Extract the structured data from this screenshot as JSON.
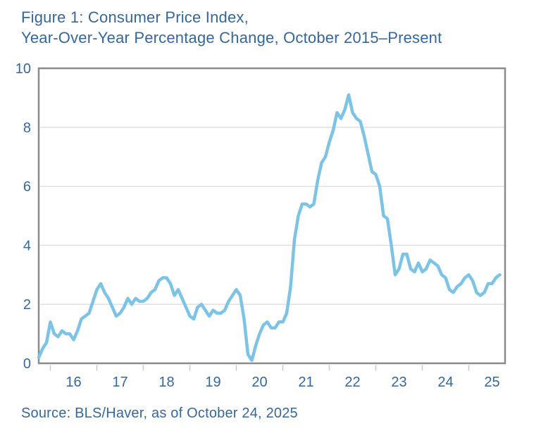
{
  "figure": {
    "title_line1": "Figure 1: Consumer Price Index,",
    "title_line2": "Year-Over-Year Percentage Change, October 2015–Present",
    "source": "Source: BLS/Haver, as of October 24, 2025"
  },
  "colors": {
    "text_blue": "#36679B",
    "line_blue": "#7CC3E6",
    "frame_gray": "#8A8A8A",
    "grid_gray": "#DCDCDC",
    "tick_gray": "#C9C9C9",
    "background": "#FFFFFF"
  },
  "chart_data": {
    "type": "line",
    "title": "Figure 1: Consumer Price Index, Year-Over-Year Percentage Change, October 2015–Present",
    "xlabel": "",
    "ylabel": "",
    "ylim": [
      0,
      10
    ],
    "y_ticks": [
      0,
      2,
      4,
      6,
      8,
      10
    ],
    "x_tick_labels": [
      "16",
      "17",
      "18",
      "19",
      "20",
      "21",
      "22",
      "23",
      "24",
      "25"
    ],
    "grid": "horizontal",
    "legend": "none",
    "frequency": "monthly",
    "x_start": "2015-10",
    "x_end": "2025-09",
    "series": [
      {
        "name": "CPI year-over-year % change",
        "values": [
          0.2,
          0.5,
          0.7,
          1.4,
          1.0,
          0.9,
          1.1,
          1.0,
          1.0,
          0.8,
          1.1,
          1.5,
          1.6,
          1.7,
          2.1,
          2.5,
          2.7,
          2.4,
          2.2,
          1.9,
          1.6,
          1.7,
          1.9,
          2.2,
          2.0,
          2.2,
          2.1,
          2.1,
          2.2,
          2.4,
          2.5,
          2.8,
          2.9,
          2.9,
          2.7,
          2.3,
          2.5,
          2.2,
          1.9,
          1.6,
          1.5,
          1.9,
          2.0,
          1.8,
          1.6,
          1.8,
          1.7,
          1.7,
          1.8,
          2.1,
          2.3,
          2.5,
          2.3,
          1.5,
          0.3,
          0.1,
          0.6,
          1.0,
          1.3,
          1.4,
          1.2,
          1.2,
          1.4,
          1.4,
          1.7,
          2.6,
          4.2,
          5.0,
          5.4,
          5.4,
          5.3,
          5.4,
          6.2,
          6.8,
          7.0,
          7.5,
          7.9,
          8.5,
          8.3,
          8.6,
          9.1,
          8.5,
          8.3,
          8.2,
          7.7,
          7.1,
          6.5,
          6.4,
          6.0,
          5.0,
          4.9,
          4.0,
          3.0,
          3.2,
          3.7,
          3.7,
          3.2,
          3.1,
          3.4,
          3.1,
          3.2,
          3.5,
          3.4,
          3.3,
          3.0,
          2.9,
          2.5,
          2.4,
          2.6,
          2.7,
          2.9,
          3.0,
          2.8,
          2.4,
          2.3,
          2.4,
          2.7,
          2.7,
          2.9,
          3.0
        ]
      }
    ]
  }
}
